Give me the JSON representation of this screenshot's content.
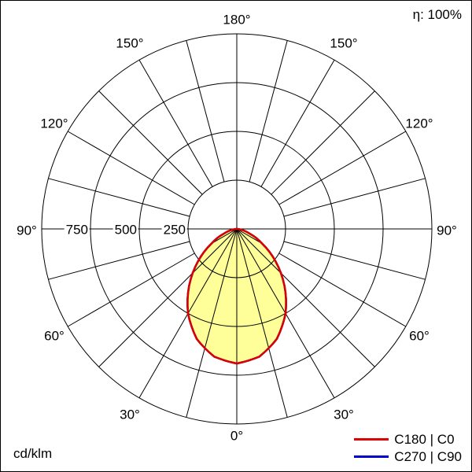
{
  "header": {
    "efficiency": "η: 100%"
  },
  "footer": {
    "unit": "cd/klm"
  },
  "legend": [
    {
      "label": "C180 | C0",
      "color": "#dd0000"
    },
    {
      "label": "C270 | C90",
      "color": "#0000cc"
    }
  ],
  "chart_data": {
    "type": "polar",
    "description": "Luminous intensity distribution polar curve, values in cd/klm",
    "unit": "cd/klm",
    "efficiency": "η: 100%",
    "angle_labels": [
      "180°",
      "150°",
      "120°",
      "90°",
      "60°",
      "30°",
      "0°"
    ],
    "r_tick_labels": [
      "750",
      "500",
      "250"
    ],
    "r_ticks": [
      750,
      500,
      250
    ],
    "r_max": 1000,
    "angle_grid_step_deg": 15,
    "grid_color": "#000000",
    "series": [
      {
        "name": "C180 | C0",
        "color": "#dd0000",
        "fill": "#ffff99",
        "symmetric": true,
        "gamma_deg": [
          0,
          10,
          20,
          30,
          40,
          50,
          60,
          70,
          80,
          90
        ],
        "values": [
          690,
          665,
          600,
          500,
          380,
          260,
          150,
          70,
          20,
          0
        ]
      },
      {
        "name": "C270 | C90",
        "color": "#0000cc",
        "symmetric": true,
        "gamma_deg": [
          0,
          10,
          20,
          30,
          40,
          50,
          60,
          70,
          80,
          90
        ],
        "values": [
          690,
          665,
          600,
          500,
          380,
          260,
          150,
          70,
          20,
          0
        ]
      }
    ]
  }
}
